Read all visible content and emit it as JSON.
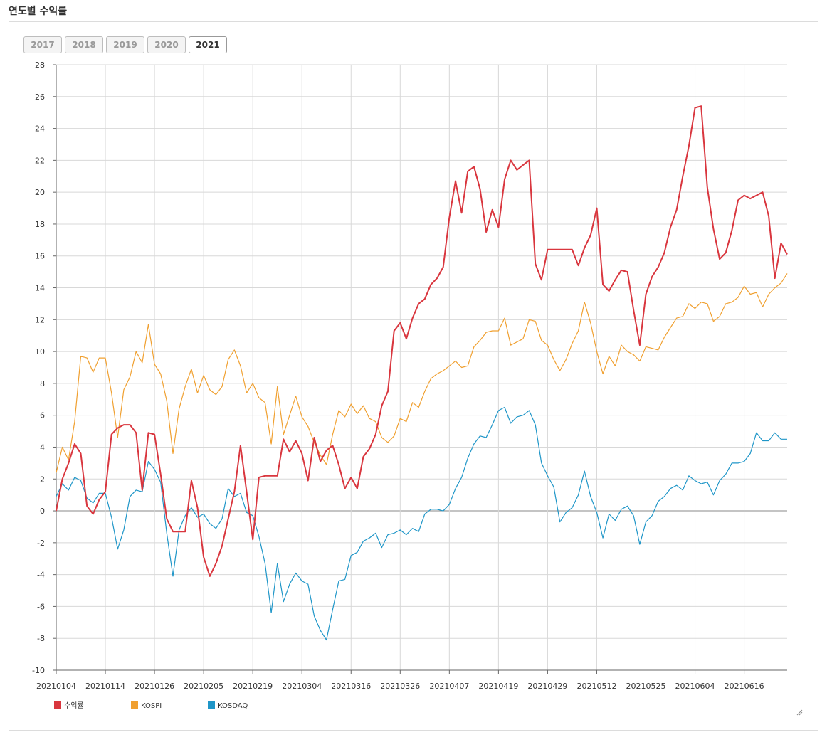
{
  "section_title": "연도별 수익률",
  "year_tabs": [
    {
      "label": "2017",
      "active": false
    },
    {
      "label": "2018",
      "active": false
    },
    {
      "label": "2019",
      "active": false
    },
    {
      "label": "2020",
      "active": false
    },
    {
      "label": "2021",
      "active": true
    }
  ],
  "colors": {
    "returns": "#d9363e",
    "kospi": "#f0a030",
    "kosdaq": "#1f96c8",
    "grid": "#d8d8d8",
    "zero": "#888888"
  },
  "chart_data": {
    "type": "line",
    "title": "",
    "xlabel": "",
    "ylabel": "",
    "ylim": [
      -10,
      28
    ],
    "yticks": [
      -10,
      -8,
      -6,
      -4,
      -2,
      0,
      2,
      4,
      6,
      8,
      10,
      12,
      14,
      16,
      18,
      20,
      22,
      24,
      26,
      28
    ],
    "x_tick_labels": [
      "20210104",
      "20210114",
      "20210126",
      "20210205",
      "20210219",
      "20210304",
      "20210316",
      "20210326",
      "20210407",
      "20210419",
      "20210429",
      "20210512",
      "20210525",
      "20210604",
      "20210616"
    ],
    "x_tick_index": [
      0,
      8,
      16,
      24,
      32,
      40,
      48,
      56,
      64,
      72,
      80,
      88,
      96,
      104,
      112
    ],
    "grid": true,
    "legend_position": "bottom-left",
    "series": [
      {
        "name": "수익률",
        "values": [
          0,
          2,
          3,
          4.2,
          3.6,
          0.3,
          -0.2,
          0.7,
          1.2,
          4.8,
          5.2,
          5.4,
          5.4,
          4.9,
          1.3,
          4.9,
          4.8,
          2.3,
          -0.5,
          -1.3,
          -1.3,
          -1.3,
          1.9,
          0.2,
          -2.9,
          -4.1,
          -3.3,
          -2.2,
          -0.5,
          1.2,
          4.1,
          1.2,
          -1.8,
          2.1,
          2.2,
          2.2,
          2.2,
          4.5,
          3.7,
          4.4,
          3.6,
          1.9,
          4.6,
          3.1,
          3.8,
          4.1,
          2.9,
          1.4,
          2.1,
          1.4,
          3.4,
          3.9,
          4.8,
          6.6,
          7.5,
          11.3,
          11.8,
          10.8,
          12.1,
          13,
          13.3,
          14.2,
          14.6,
          15.3,
          18.4,
          20.7,
          18.7,
          21.3,
          21.6,
          20.2,
          17.5,
          18.9,
          17.8,
          20.8,
          22,
          21.4,
          21.7,
          22,
          15.5,
          14.5,
          16.4,
          16.4,
          16.4,
          16.4,
          16.4,
          15.4,
          16.5,
          17.3,
          19,
          14.2,
          13.8,
          14.5,
          15.1,
          15,
          12.6,
          10.4,
          13.6,
          14.7,
          15.3,
          16.2,
          17.8,
          18.9,
          21,
          22.9,
          25.3,
          25.4,
          20.3,
          17.7,
          15.8,
          16.2,
          17.6,
          19.5,
          19.8,
          19.6,
          19.8,
          20,
          18.5,
          14.6,
          16.8,
          16.1
        ]
      },
      {
        "name": "KOSPI",
        "values": [
          2.4,
          4,
          3.2,
          5.6,
          9.7,
          9.6,
          8.7,
          9.6,
          9.6,
          7.4,
          4.6,
          7.6,
          8.4,
          10,
          9.3,
          11.7,
          9.2,
          8.6,
          6.9,
          3.6,
          6.4,
          7.8,
          8.9,
          7.4,
          8.5,
          7.6,
          7.3,
          7.8,
          9.5,
          10.1,
          9.1,
          7.4,
          8,
          7.1,
          6.8,
          4.2,
          7.8,
          4.8,
          6,
          7.2,
          5.9,
          5.3,
          4.3,
          3.5,
          2.9,
          4.8,
          6.3,
          5.9,
          6.7,
          6.1,
          6.6,
          5.8,
          5.6,
          4.6,
          4.3,
          4.7,
          5.8,
          5.6,
          6.8,
          6.5,
          7.5,
          8.3,
          8.6,
          8.8,
          9.1,
          9.4,
          9,
          9.1,
          10.3,
          10.7,
          11.2,
          11.3,
          11.3,
          12.1,
          10.4,
          10.6,
          10.8,
          12,
          11.9,
          10.7,
          10.4,
          9.5,
          8.8,
          9.5,
          10.5,
          11.3,
          13.1,
          11.8,
          10,
          8.6,
          9.7,
          9.1,
          10.4,
          10,
          9.8,
          9.4,
          10.3,
          10.2,
          10.1,
          10.9,
          11.5,
          12.1,
          12.2,
          13,
          12.7,
          13.1,
          13,
          11.9,
          12.2,
          13,
          13.1,
          13.4,
          14.1,
          13.6,
          13.7,
          12.8,
          13.6,
          14,
          14.3,
          14.9
        ]
      },
      {
        "name": "KOSDAQ",
        "values": [
          0.9,
          1.7,
          1.3,
          2.1,
          1.9,
          0.8,
          0.5,
          1.1,
          1.1,
          -0.4,
          -2.4,
          -1.2,
          0.9,
          1.3,
          1.2,
          3.1,
          2.6,
          1.8,
          -1.4,
          -4.1,
          -1.2,
          -0.3,
          0.2,
          -0.4,
          -0.2,
          -0.8,
          -1.1,
          -0.5,
          1.4,
          0.9,
          1.1,
          -0.1,
          -0.3,
          -1.6,
          -3.3,
          -6.4,
          -3.3,
          -5.7,
          -4.6,
          -3.9,
          -4.4,
          -4.6,
          -6.6,
          -7.5,
          -8.1,
          -6.2,
          -4.4,
          -4.3,
          -2.8,
          -2.6,
          -1.9,
          -1.7,
          -1.4,
          -2.3,
          -1.5,
          -1.4,
          -1.2,
          -1.5,
          -1.1,
          -1.3,
          -0.2,
          0.1,
          0.1,
          0,
          0.4,
          1.4,
          2.1,
          3.3,
          4.2,
          4.7,
          4.6,
          5.4,
          6.3,
          6.5,
          5.5,
          5.9,
          6,
          6.3,
          5.4,
          3,
          2.2,
          1.5,
          -0.7,
          -0.1,
          0.2,
          1,
          2.5,
          0.9,
          -0.1,
          -1.7,
          -0.2,
          -0.6,
          0.1,
          0.3,
          -0.3,
          -2.1,
          -0.7,
          -0.3,
          0.6,
          0.9,
          1.4,
          1.6,
          1.3,
          2.2,
          1.9,
          1.7,
          1.8,
          1,
          1.9,
          2.3,
          3,
          3,
          3.1,
          3.6,
          4.9,
          4.4,
          4.4,
          4.9,
          4.5,
          4.5
        ]
      }
    ]
  }
}
